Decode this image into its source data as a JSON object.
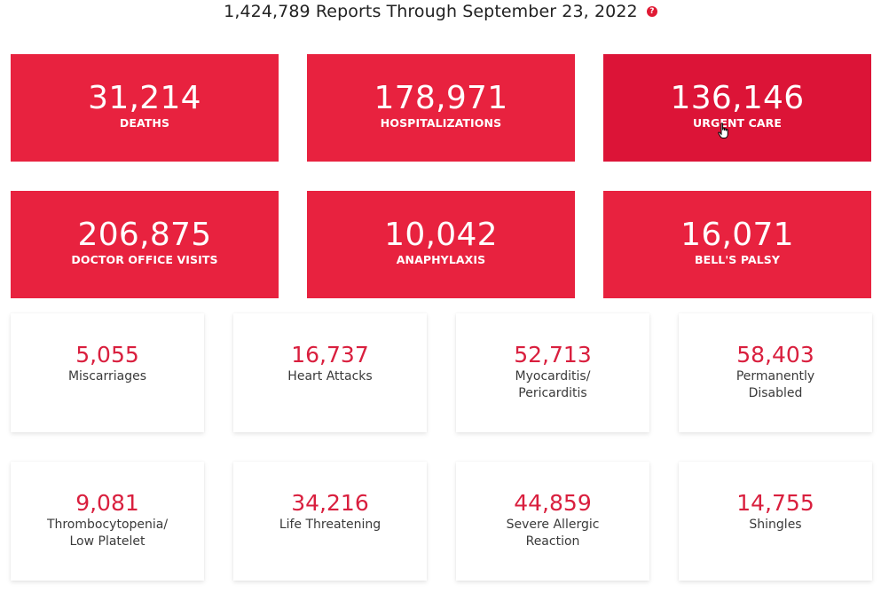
{
  "header": {
    "title": "1,424,789 Reports Through September 23, 2022",
    "help_icon_glyph": "?"
  },
  "colors": {
    "accent_red": "#e8223f",
    "accent_red_hover": "#dc1437",
    "number_red": "#d91f3e"
  },
  "primary_stats": [
    {
      "value": "31,214",
      "label": "DEATHS"
    },
    {
      "value": "178,971",
      "label": "HOSPITALIZATIONS"
    },
    {
      "value": "136,146",
      "label": "URGENT CARE"
    },
    {
      "value": "206,875",
      "label": "DOCTOR OFFICE VISITS"
    },
    {
      "value": "10,042",
      "label": "ANAPHYLAXIS"
    },
    {
      "value": "16,071",
      "label": "BELL'S PALSY"
    }
  ],
  "secondary_stats": [
    {
      "value": "5,055",
      "label": "Miscarriages"
    },
    {
      "value": "16,737",
      "label": "Heart Attacks"
    },
    {
      "value": "52,713",
      "label": "Myocarditis/ Pericarditis"
    },
    {
      "value": "58,403",
      "label": "Permanently Disabled"
    },
    {
      "value": "9,081",
      "label": "Thrombocytopenia/ Low Platelet"
    },
    {
      "value": "34,216",
      "label": "Life Threatening"
    },
    {
      "value": "44,859",
      "label": "Severe Allergic Reaction"
    },
    {
      "value": "14,755",
      "label": "Shingles"
    }
  ]
}
